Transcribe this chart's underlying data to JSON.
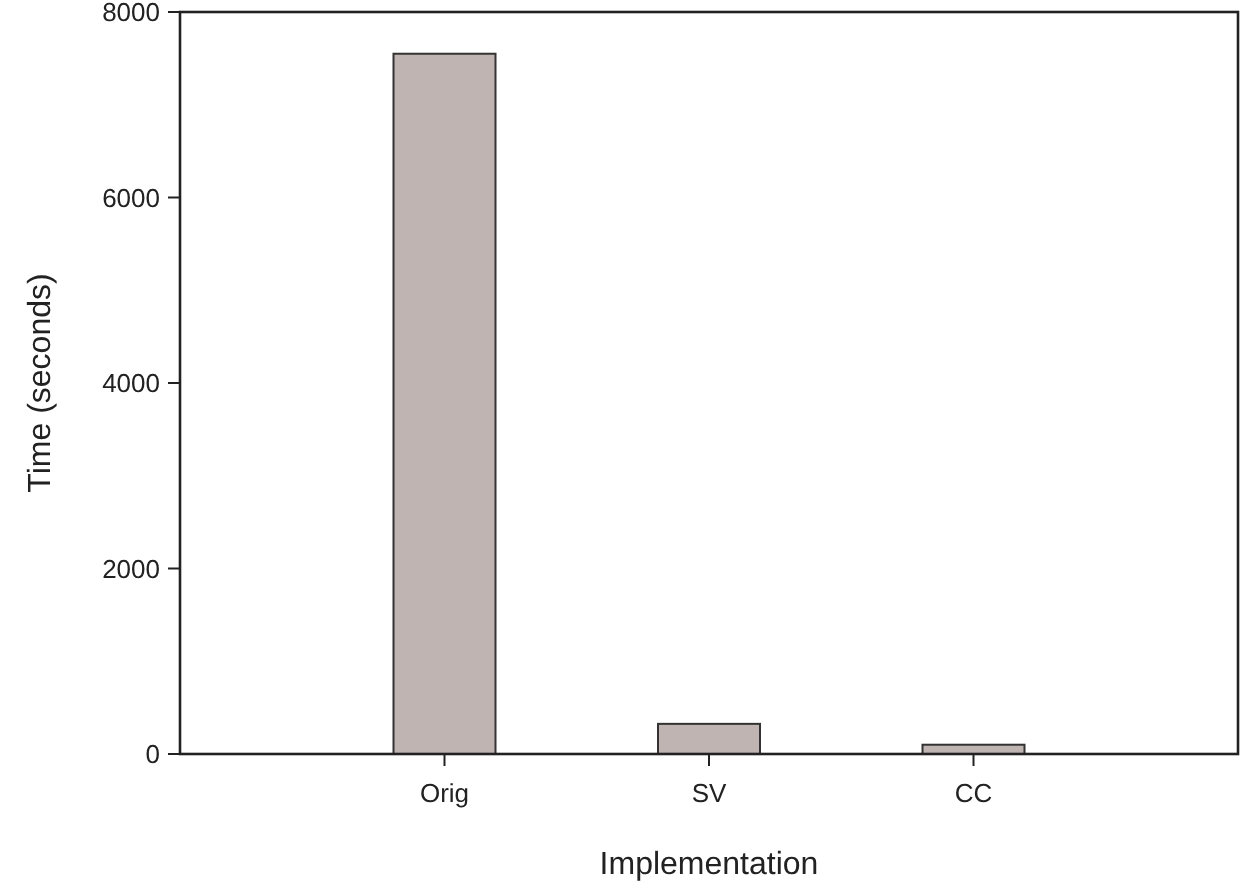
{
  "chart_data": {
    "type": "bar",
    "xlabel": "Implementation",
    "ylabel": "Time (seconds)",
    "categories": [
      "Orig",
      "SV",
      "CC"
    ],
    "values": [
      7550,
      325,
      100
    ],
    "color": "#bfb4b2",
    "ylim": [
      0,
      8000
    ],
    "yticks": [
      0,
      2000,
      4000,
      6000,
      8000
    ],
    "grid": false
  }
}
